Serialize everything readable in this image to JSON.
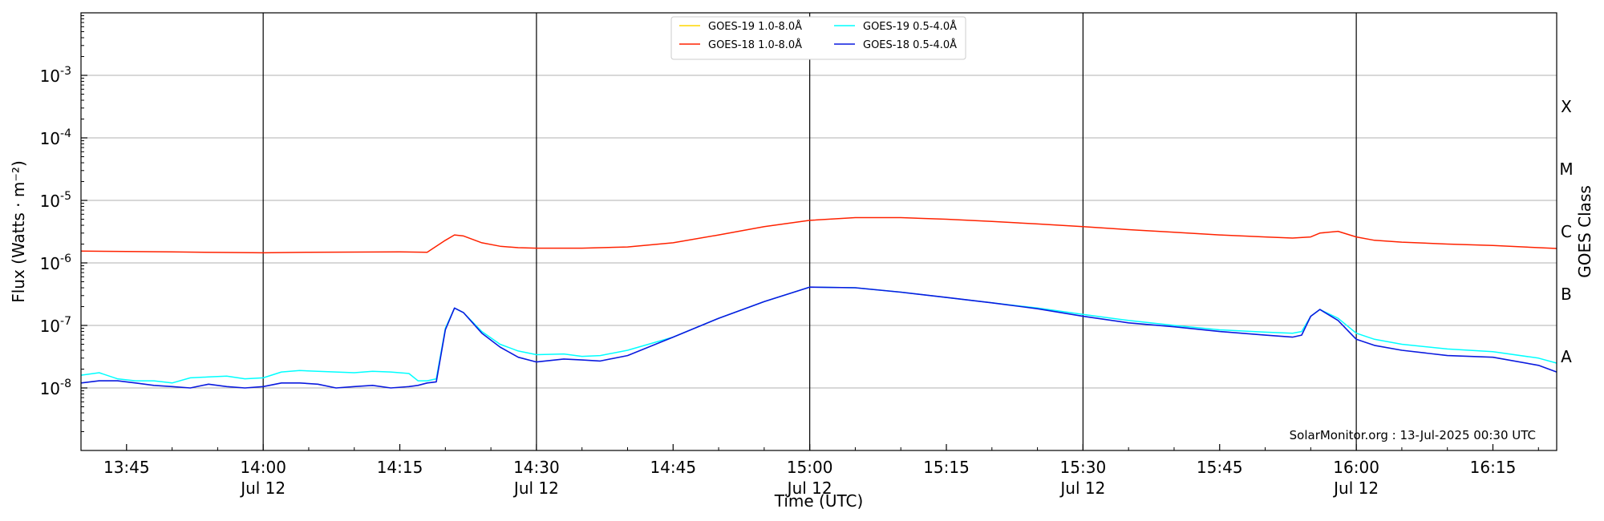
{
  "chart_data": {
    "type": "line",
    "xlabel": "Time (UTC)",
    "ylabel": "Flux (Watts · m⁻²)",
    "y2label": "GOES Class",
    "y_scale": "log",
    "ylim": [
      1e-09,
      0.01
    ],
    "xlim": [
      "2025-07-12T13:40",
      "2025-07-12T16:22"
    ],
    "grid": "horizontal",
    "legend_position": "top-center",
    "credit": "SolarMonitor.org : 13-Jul-2025 00:30 UTC",
    "y_ticks": [
      {
        "exp": "-8",
        "value": 1e-08
      },
      {
        "exp": "-7",
        "value": 1e-07
      },
      {
        "exp": "-6",
        "value": 1e-06
      },
      {
        "exp": "-5",
        "value": 1e-05
      },
      {
        "exp": "-4",
        "value": 0.0001
      },
      {
        "exp": "-3",
        "value": 0.001
      }
    ],
    "y_tick_base": "10",
    "goes_classes": [
      {
        "label": "A",
        "value": 3.16e-08
      },
      {
        "label": "B",
        "value": 3.16e-07
      },
      {
        "label": "C",
        "value": 3.16e-06
      },
      {
        "label": "M",
        "value": 3.16e-05
      },
      {
        "label": "X",
        "value": 0.000316
      }
    ],
    "x_ticks": [
      {
        "time": "13:45",
        "date": ""
      },
      {
        "time": "14:00",
        "date": "Jul 12"
      },
      {
        "time": "14:15",
        "date": ""
      },
      {
        "time": "14:30",
        "date": "Jul 12"
      },
      {
        "time": "14:45",
        "date": ""
      },
      {
        "time": "15:00",
        "date": "Jul 12"
      },
      {
        "time": "15:15",
        "date": ""
      },
      {
        "time": "15:30",
        "date": "Jul 12"
      },
      {
        "time": "15:45",
        "date": ""
      },
      {
        "time": "16:00",
        "date": "Jul 12"
      },
      {
        "time": "16:15",
        "date": ""
      }
    ],
    "series": [
      {
        "name": "GOES-19 1.0-8.0Å",
        "color": "#ffd700",
        "x": [],
        "values": []
      },
      {
        "name": "GOES-18 1.0-8.0Å",
        "color": "#ff2200",
        "x": [
          "13:40",
          "13:45",
          "13:50",
          "13:55",
          "14:00",
          "14:05",
          "14:10",
          "14:15",
          "14:18",
          "14:20",
          "14:21",
          "14:22",
          "14:24",
          "14:26",
          "14:28",
          "14:30",
          "14:35",
          "14:40",
          "14:45",
          "14:50",
          "14:55",
          "15:00",
          "15:05",
          "15:10",
          "15:15",
          "15:20",
          "15:25",
          "15:30",
          "15:35",
          "15:40",
          "15:45",
          "15:50",
          "15:53",
          "15:55",
          "15:56",
          "15:58",
          "16:00",
          "16:02",
          "16:05",
          "16:10",
          "16:15",
          "16:22"
        ],
        "values": [
          1.55e-06,
          1.52e-06,
          1.5e-06,
          1.47e-06,
          1.45e-06,
          1.48e-06,
          1.49e-06,
          1.5e-06,
          1.48e-06,
          2.3e-06,
          2.8e-06,
          2.7e-06,
          2.1e-06,
          1.85e-06,
          1.75e-06,
          1.72e-06,
          1.72e-06,
          1.8e-06,
          2.1e-06,
          2.8e-06,
          3.8e-06,
          4.8e-06,
          5.3e-06,
          5.3e-06,
          5e-06,
          4.6e-06,
          4.2e-06,
          3.8e-06,
          3.4e-06,
          3.1e-06,
          2.8e-06,
          2.6e-06,
          2.5e-06,
          2.6e-06,
          3e-06,
          3.2e-06,
          2.6e-06,
          2.3e-06,
          2.15e-06,
          2e-06,
          1.9e-06,
          1.7e-06
        ]
      },
      {
        "name": "GOES-19 0.5-4.0Å",
        "color": "#00ffff",
        "x": [
          "13:40",
          "13:42",
          "13:44",
          "13:46",
          "13:48",
          "13:50",
          "13:52",
          "13:54",
          "13:56",
          "13:58",
          "14:00",
          "14:02",
          "14:04",
          "14:06",
          "14:08",
          "14:10",
          "14:12",
          "14:14",
          "14:16",
          "14:17",
          "14:18",
          "14:19",
          "14:20",
          "14:21",
          "14:22",
          "14:24",
          "14:26",
          "14:28",
          "14:30",
          "14:33",
          "14:35",
          "14:37",
          "14:40",
          "14:45",
          "14:50",
          "14:55",
          "15:00",
          "15:05",
          "15:10",
          "15:15",
          "15:20",
          "15:25",
          "15:30",
          "15:35",
          "15:40",
          "15:45",
          "15:50",
          "15:53",
          "15:54",
          "15:55",
          "15:56",
          "15:58",
          "16:00",
          "16:02",
          "16:05",
          "16:10",
          "16:15",
          "16:20",
          "16:22"
        ],
        "values": [
          1.6e-08,
          1.75e-08,
          1.4e-08,
          1.3e-08,
          1.3e-08,
          1.2e-08,
          1.45e-08,
          1.5e-08,
          1.55e-08,
          1.4e-08,
          1.45e-08,
          1.8e-08,
          1.9e-08,
          1.85e-08,
          1.8e-08,
          1.75e-08,
          1.85e-08,
          1.8e-08,
          1.7e-08,
          1.3e-08,
          1.3e-08,
          1.4e-08,
          9e-08,
          1.9e-07,
          1.6e-07,
          8e-08,
          5e-08,
          3.9e-08,
          3.4e-08,
          3.5e-08,
          3.2e-08,
          3.3e-08,
          4e-08,
          6.5e-08,
          1.3e-07,
          2.4e-07,
          4.1e-07,
          4e-07,
          3.4e-07,
          2.8e-07,
          2.3e-07,
          1.9e-07,
          1.5e-07,
          1.2e-07,
          1e-07,
          8.5e-08,
          7.8e-08,
          7.5e-08,
          8e-08,
          1.4e-07,
          1.8e-07,
          1.3e-07,
          7.5e-08,
          6e-08,
          5e-08,
          4.2e-08,
          3.8e-08,
          3e-08,
          2.5e-08
        ]
      },
      {
        "name": "GOES-18 0.5-4.0Å",
        "color": "#0a1adf",
        "x": [
          "13:40",
          "13:42",
          "13:44",
          "13:46",
          "13:48",
          "13:50",
          "13:52",
          "13:54",
          "13:56",
          "13:58",
          "14:00",
          "14:02",
          "14:04",
          "14:06",
          "14:08",
          "14:10",
          "14:12",
          "14:14",
          "14:16",
          "14:17",
          "14:18",
          "14:19",
          "14:20",
          "14:21",
          "14:22",
          "14:24",
          "14:26",
          "14:28",
          "14:30",
          "14:33",
          "14:35",
          "14:37",
          "14:40",
          "14:45",
          "14:50",
          "14:55",
          "15:00",
          "15:05",
          "15:10",
          "15:15",
          "15:20",
          "15:25",
          "15:30",
          "15:35",
          "15:40",
          "15:45",
          "15:50",
          "15:53",
          "15:54",
          "15:55",
          "15:56",
          "15:58",
          "16:00",
          "16:02",
          "16:05",
          "16:10",
          "16:15",
          "16:20",
          "16:22"
        ],
        "values": [
          1.2e-08,
          1.3e-08,
          1.3e-08,
          1.2e-08,
          1.1e-08,
          1.05e-08,
          1e-08,
          1.15e-08,
          1.05e-08,
          1e-08,
          1.05e-08,
          1.2e-08,
          1.2e-08,
          1.15e-08,
          1e-08,
          1.05e-08,
          1.1e-08,
          1e-08,
          1.05e-08,
          1.1e-08,
          1.2e-08,
          1.25e-08,
          8.5e-08,
          1.9e-07,
          1.6e-07,
          7.5e-08,
          4.5e-08,
          3.1e-08,
          2.6e-08,
          2.9e-08,
          2.8e-08,
          2.7e-08,
          3.3e-08,
          6.5e-08,
          1.3e-07,
          2.4e-07,
          4.1e-07,
          4e-07,
          3.4e-07,
          2.8e-07,
          2.3e-07,
          1.85e-07,
          1.4e-07,
          1.1e-07,
          9.5e-08,
          8e-08,
          7e-08,
          6.5e-08,
          7e-08,
          1.4e-07,
          1.8e-07,
          1.2e-07,
          6e-08,
          4.8e-08,
          4e-08,
          3.3e-08,
          3.1e-08,
          2.3e-08,
          1.8e-08
        ]
      }
    ]
  }
}
